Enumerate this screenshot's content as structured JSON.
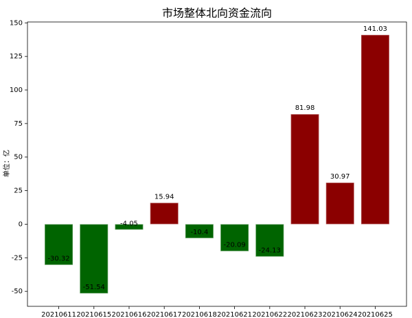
{
  "chart_data": {
    "type": "bar",
    "title": "市场整体北向资金流向",
    "y_label": "单位：亿",
    "categories": [
      "20210611",
      "20210615",
      "20210616",
      "20210617",
      "20210618",
      "20210621",
      "20210622",
      "20210623",
      "20210624",
      "20210625"
    ],
    "values": [
      -30.32,
      -51.54,
      -4.05,
      15.94,
      -10.4,
      -20.09,
      -24.13,
      81.98,
      30.97,
      141.03
    ],
    "colors": [
      "#006400",
      "#006400",
      "#006400",
      "#8b0000",
      "#006400",
      "#006400",
      "#006400",
      "#8b0000",
      "#8b0000",
      "#8b0000"
    ],
    "ylim": [
      -61.17,
      150.66
    ],
    "yticks": [
      -50,
      -25,
      0,
      25,
      50,
      75,
      100,
      125,
      150
    ],
    "grid": false
  }
}
